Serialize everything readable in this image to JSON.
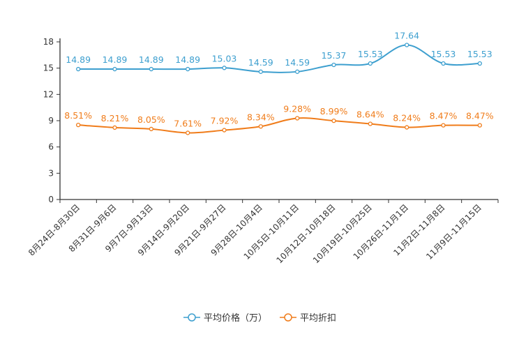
{
  "chart_data": {
    "type": "line",
    "categories": [
      "8月24日-8月30日",
      "8月31日-9月6日",
      "9月7日-9月13日",
      "9月14日-9月20日",
      "9月21日-9月27日",
      "9月28日-10月4日",
      "10月5日-10月11日",
      "10月12日-10月18日",
      "10月19日-10月25日",
      "10月26日-11月1日",
      "11月2日-11月8日",
      "11月9日-11月15日"
    ],
    "ylim": [
      0,
      18
    ],
    "yticks": [
      0,
      3,
      6,
      9,
      12,
      15,
      18
    ],
    "series": [
      {
        "name": "平均价格（万）",
        "color": "#3d9fcf",
        "values": [
          14.89,
          14.89,
          14.89,
          14.89,
          15.03,
          14.59,
          14.59,
          15.37,
          15.53,
          17.64,
          15.53,
          15.53
        ],
        "labels": [
          "14.89",
          "14.89",
          "14.89",
          "14.89",
          "15.03",
          "14.59",
          "14.59",
          "15.37",
          "15.53",
          "17.64",
          "15.53",
          "15.53"
        ]
      },
      {
        "name": "平均折扣",
        "color": "#f07c1a",
        "values": [
          8.51,
          8.21,
          8.05,
          7.61,
          7.92,
          8.34,
          9.28,
          8.99,
          8.64,
          8.24,
          8.47,
          8.47
        ],
        "labels": [
          "8.51%",
          "8.21%",
          "8.05%",
          "7.61%",
          "7.92%",
          "8.34%",
          "9.28%",
          "8.99%",
          "8.64%",
          "8.24%",
          "8.47%",
          "8.47%"
        ]
      }
    ],
    "title": "",
    "xlabel": "",
    "ylabel": "",
    "legend_position": "bottom-center"
  }
}
